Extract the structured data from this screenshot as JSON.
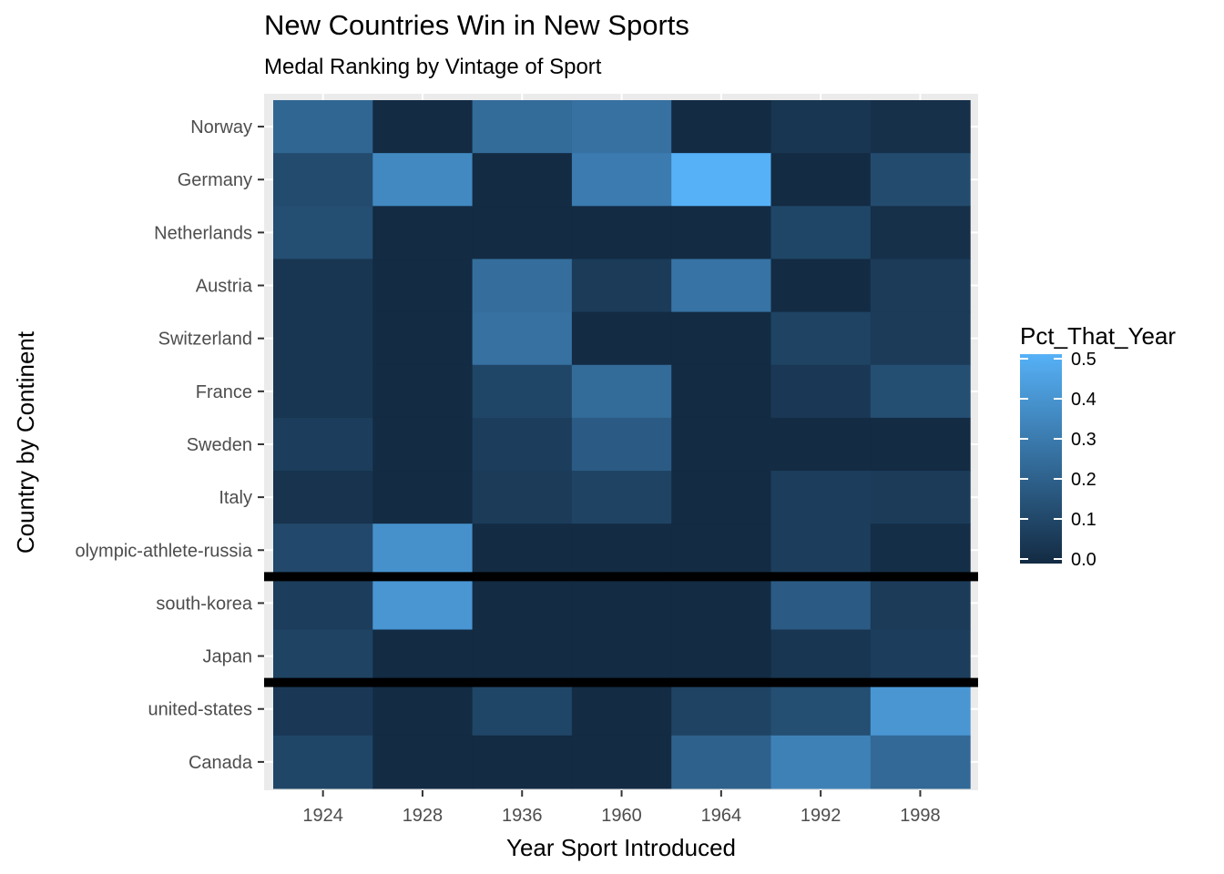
{
  "chart_data": {
    "type": "heatmap",
    "title": "New Countries Win in New Sports",
    "subtitle": "Medal Ranking by Vintage of Sport",
    "xlabel": "Year Sport Introduced",
    "ylabel": "Country by Continent",
    "x_categories": [
      "1924",
      "1928",
      "1936",
      "1960",
      "1964",
      "1992",
      "1998"
    ],
    "y_categories": [
      "Norway",
      "Germany",
      "Netherlands",
      "Austria",
      "Switzerland",
      "France",
      "Sweden",
      "Italy",
      "olympic-athlete-russia",
      "south-korea",
      "Japan",
      "united-states",
      "Canada"
    ],
    "values": [
      [
        0.22,
        0.0,
        0.24,
        0.26,
        0.0,
        0.04,
        0.02
      ],
      [
        0.12,
        0.35,
        0.0,
        0.3,
        0.5,
        0.0,
        0.12
      ],
      [
        0.13,
        0.0,
        0.0,
        0.0,
        0.0,
        0.1,
        0.02
      ],
      [
        0.04,
        0.0,
        0.25,
        0.06,
        0.27,
        0.0,
        0.06
      ],
      [
        0.04,
        0.0,
        0.26,
        0.0,
        0.0,
        0.09,
        0.06
      ],
      [
        0.04,
        0.0,
        0.1,
        0.24,
        0.0,
        0.05,
        0.13
      ],
      [
        0.07,
        0.0,
        0.07,
        0.18,
        0.0,
        0.0,
        0.0
      ],
      [
        0.03,
        0.0,
        0.06,
        0.09,
        0.0,
        0.07,
        0.06
      ],
      [
        0.11,
        0.38,
        0.0,
        0.0,
        0.0,
        0.07,
        0.01
      ],
      [
        0.07,
        0.4,
        0.0,
        0.0,
        0.0,
        0.18,
        0.06
      ],
      [
        0.09,
        0.0,
        0.0,
        0.0,
        0.0,
        0.04,
        0.07
      ],
      [
        0.05,
        0.0,
        0.1,
        0.0,
        0.09,
        0.13,
        0.4
      ],
      [
        0.1,
        0.0,
        0.0,
        0.0,
        0.2,
        0.32,
        0.23
      ]
    ],
    "separators_after": [
      "olympic-athlete-russia",
      "Japan"
    ],
    "legend": {
      "title": "Pct_That_Year",
      "ticks": [
        "0.0",
        "0.1",
        "0.2",
        "0.3",
        "0.4",
        "0.5"
      ],
      "min": 0,
      "max": 0.5,
      "color_low": "#132B43",
      "color_high": "#56B1F7",
      "placement": "right"
    },
    "panel_background": "#EBEBEB",
    "grid": true
  }
}
